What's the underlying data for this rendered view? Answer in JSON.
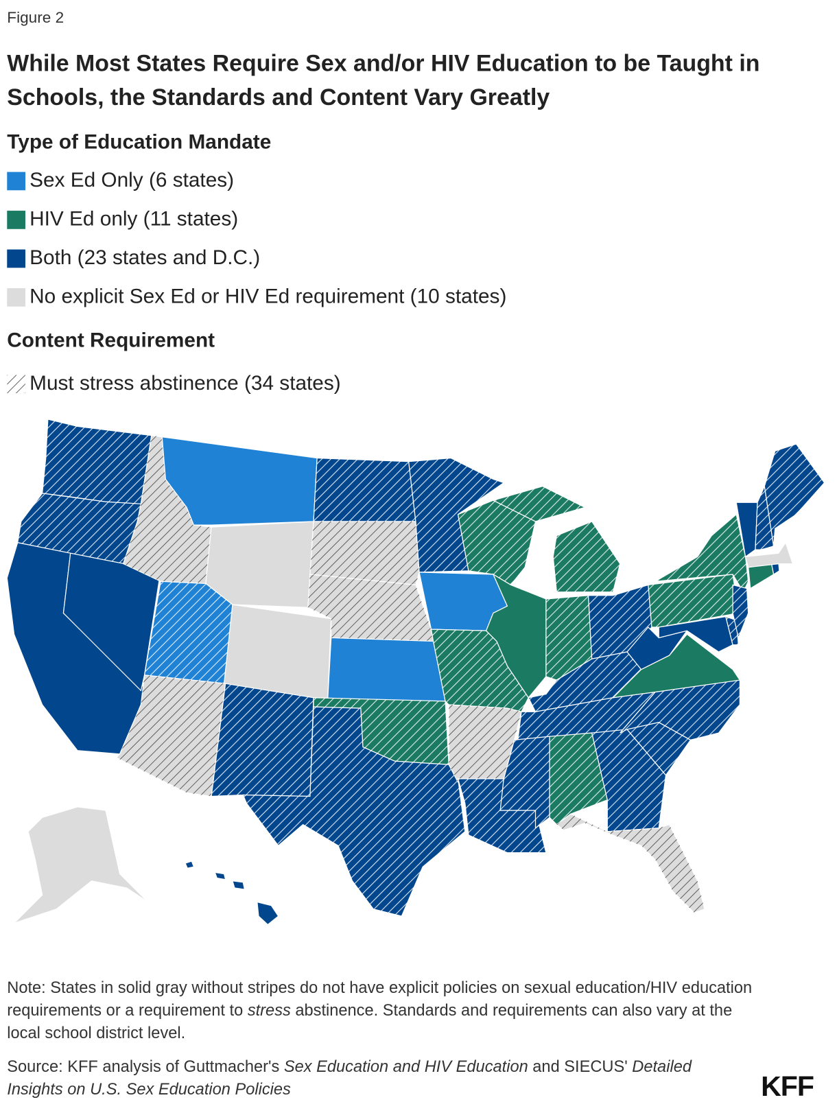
{
  "figure_label": "Figure 2",
  "title": "While Most States Require Sex and/or HIV Education to be Taught in Schools, the Standards and Content Vary Greatly",
  "mandate_legend": {
    "title": "Type of Education Mandate",
    "items": [
      {
        "label": "Sex Ed Only (6 states)",
        "color": "#1f82d4"
      },
      {
        "label": "HIV Ed only (11 states)",
        "color": "#1b7a62"
      },
      {
        "label": "Both (23 states and D.C.)",
        "color": "#02478e"
      },
      {
        "label": "No explicit Sex Ed or HIV Ed requirement (10 states)",
        "color": "#dcdcdc"
      }
    ]
  },
  "content_legend": {
    "title": "Content Requirement",
    "items": [
      {
        "label": "Must stress abstinence (34 states)"
      }
    ]
  },
  "note": [
    "Note: States in solid gray without stripes do not have explicit policies on sexual education/HIV education requirements or a requirement to ",
    "stress",
    " abstinence. Standards and requirements can also vary at the local school district level."
  ],
  "source": [
    "Source: KFF analysis of Guttmacher's ",
    "Sex Education and HIV Education",
    " and SIECUS' ",
    "Detailed Insights on U.S. Sex Education Policies"
  ],
  "logo": "KFF"
}
